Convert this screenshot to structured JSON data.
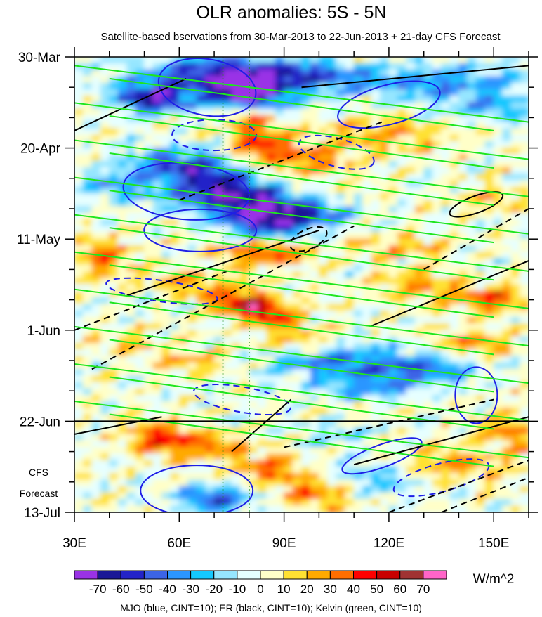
{
  "chart_data": {
    "type": "heatmap",
    "title": "OLR anomalies: 5S - 5N",
    "subtitle": "Satellite-based bservations from 30-Mar-2013 to 22-Jun-2013 + 21-day CFS Forecast",
    "x_ticks": [
      {
        "value": 30,
        "label": "30E"
      },
      {
        "value": 60,
        "label": "60E"
      },
      {
        "value": 90,
        "label": "90E"
      },
      {
        "value": 120,
        "label": "120E"
      },
      {
        "value": 150,
        "label": "150E"
      }
    ],
    "xlim": [
      30,
      160
    ],
    "y_ticks": [
      {
        "day": 0,
        "label": "30-Mar"
      },
      {
        "day": 21,
        "label": "20-Apr"
      },
      {
        "day": 42,
        "label": "11-May"
      },
      {
        "day": 63,
        "label": "1-Jun"
      },
      {
        "day": 84,
        "label": "22-Jun"
      },
      {
        "day": 105,
        "label": "13-Jul"
      }
    ],
    "ylim_days": [
      0,
      105
    ],
    "forecast_start_day": 84,
    "forecast_label_line1": "CFS",
    "forecast_label_line2": "Forecast",
    "reference_lines_lon": [
      72.5,
      80
    ],
    "colorbar": {
      "levels": [
        -70,
        -60,
        -50,
        -40,
        -30,
        -20,
        -10,
        0,
        10,
        20,
        30,
        40,
        50,
        60,
        70
      ],
      "labels": [
        "-70",
        "-60",
        "-50",
        "-40",
        "-30",
        "-20",
        "-10",
        "0",
        "10",
        "20",
        "30",
        "40",
        "50",
        "60",
        "70"
      ],
      "colors": [
        "#9a32e6",
        "#1b1796",
        "#2323c8",
        "#3c64e6",
        "#2c96ff",
        "#14c8ff",
        "#96e6ff",
        "#e6ffff",
        "#ffffc8",
        "#ffe132",
        "#ffaa00",
        "#ff6e00",
        "#ff0000",
        "#c80000",
        "#a03232",
        "#ff64c8"
      ],
      "units": "W/m^2"
    },
    "footer": "MJO (blue, CINT=10); ER (black, CINT=10); Kelvin (green, CINT=10)",
    "contour_colors": {
      "mjo": "#1e1ee6",
      "er": "#000000",
      "kelvin": "#1ee61e"
    }
  }
}
